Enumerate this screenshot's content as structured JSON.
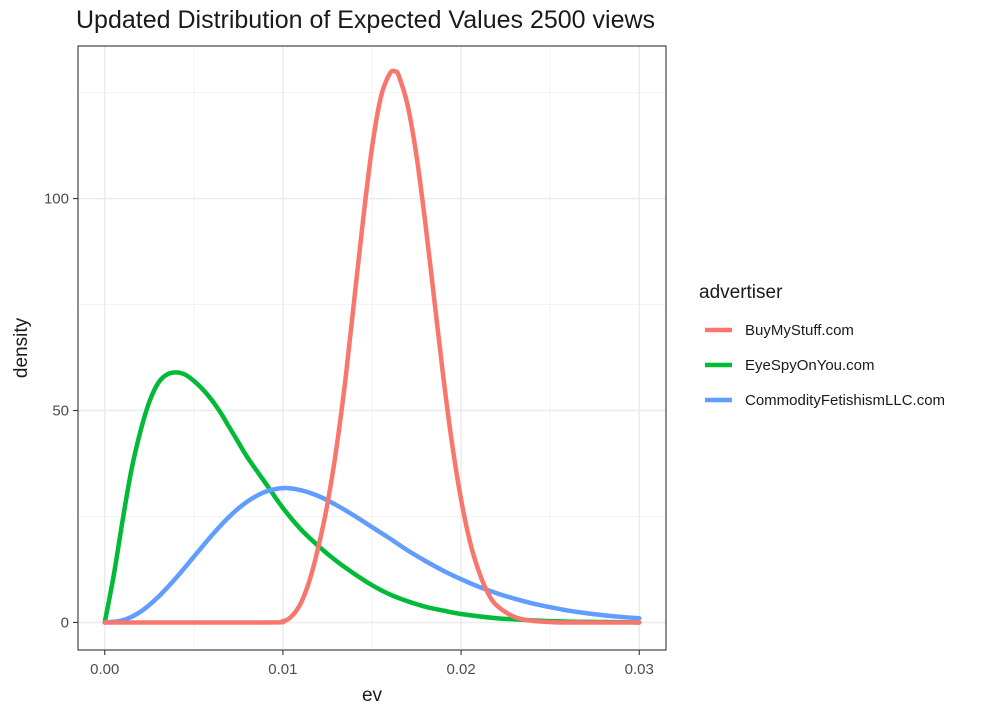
{
  "chart_data": {
    "type": "line",
    "title": "Updated Distribution of Expected Values 2500 views",
    "xlabel": "ev",
    "ylabel": "density",
    "xlim": [
      -0.0015,
      0.0315
    ],
    "ylim": [
      -6.5,
      136
    ],
    "x_ticks": [
      0.0,
      0.01,
      0.02,
      0.03
    ],
    "x_tick_labels": [
      "0.00",
      "0.01",
      "0.02",
      "0.03"
    ],
    "y_ticks": [
      0,
      50,
      100
    ],
    "y_tick_labels": [
      "0",
      "50",
      "100"
    ],
    "x_minor_ticks": [
      0.005,
      0.015,
      0.025
    ],
    "y_minor_ticks": [
      25,
      75,
      125
    ],
    "grid": true,
    "legend_title": "advertiser",
    "legend_position": "right",
    "series": [
      {
        "name": "BuyMyStuff.com",
        "color": "#F8766D",
        "x": [
          0.0,
          0.009,
          0.01,
          0.0105,
          0.011,
          0.0115,
          0.012,
          0.0125,
          0.013,
          0.0135,
          0.014,
          0.0145,
          0.015,
          0.0155,
          0.016,
          0.0163,
          0.0165,
          0.017,
          0.0175,
          0.018,
          0.0185,
          0.019,
          0.0195,
          0.02,
          0.0205,
          0.021,
          0.0215,
          0.022,
          0.023,
          0.024,
          0.025,
          0.026,
          0.03
        ],
        "y": [
          0,
          0,
          0.3,
          1.5,
          4.5,
          10,
          18,
          28,
          41,
          57,
          76,
          95,
          112,
          124,
          129.5,
          130,
          129,
          122,
          110,
          94,
          76,
          58,
          42,
          29,
          19,
          12,
          7,
          4,
          1.3,
          0.4,
          0.1,
          0,
          0
        ]
      },
      {
        "name": "EyeSpyOnYou.com",
        "color": "#00BA38",
        "x": [
          0.0,
          0.0005,
          0.001,
          0.0015,
          0.002,
          0.0025,
          0.003,
          0.0035,
          0.004,
          0.0045,
          0.005,
          0.0055,
          0.006,
          0.0065,
          0.007,
          0.0075,
          0.008,
          0.009,
          0.01,
          0.011,
          0.012,
          0.013,
          0.014,
          0.015,
          0.016,
          0.017,
          0.018,
          0.019,
          0.02,
          0.022,
          0.024,
          0.026,
          0.028,
          0.03
        ],
        "y": [
          0,
          11,
          24,
          36,
          45,
          52,
          56.5,
          58.5,
          59,
          58.5,
          57,
          55,
          52.5,
          49.5,
          46,
          42.5,
          39,
          33,
          27,
          22,
          18,
          14.5,
          11.5,
          8.8,
          6.6,
          5,
          3.7,
          2.8,
          2,
          1,
          0.5,
          0.2,
          0.1,
          0
        ]
      },
      {
        "name": "CommodityFetishismLLC.com",
        "color": "#619CFF",
        "x": [
          0.0,
          0.001,
          0.002,
          0.003,
          0.004,
          0.005,
          0.006,
          0.007,
          0.008,
          0.009,
          0.01,
          0.011,
          0.012,
          0.013,
          0.014,
          0.015,
          0.016,
          0.017,
          0.018,
          0.019,
          0.02,
          0.021,
          0.022,
          0.023,
          0.024,
          0.025,
          0.026,
          0.027,
          0.028,
          0.029,
          0.03
        ],
        "y": [
          0,
          0.5,
          2.5,
          6,
          10.5,
          15.5,
          20.5,
          25,
          28.5,
          30.8,
          31.7,
          31.2,
          29.8,
          27.7,
          25.2,
          22.5,
          19.8,
          17,
          14.5,
          12.2,
          10.2,
          8.4,
          6.9,
          5.6,
          4.5,
          3.6,
          2.8,
          2.2,
          1.7,
          1.3,
          1
        ]
      }
    ]
  }
}
